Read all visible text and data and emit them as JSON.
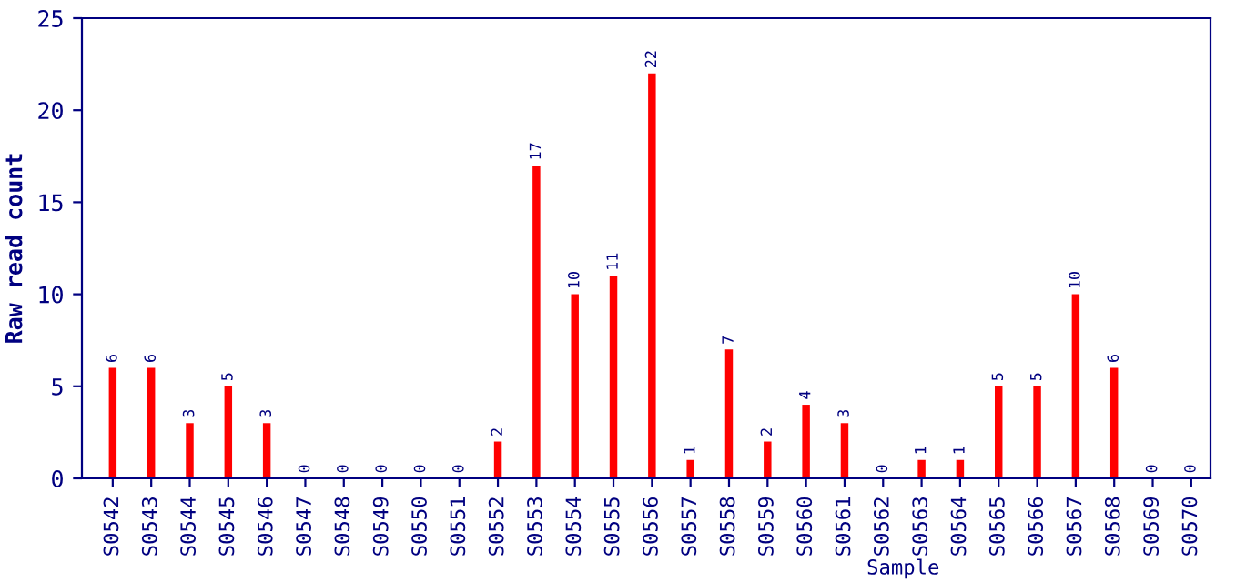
{
  "chart_data": {
    "type": "bar",
    "xlabel": "Sample",
    "ylabel": "Raw read count",
    "categories": [
      "S0542",
      "S0543",
      "S0544",
      "S0545",
      "S0546",
      "S0547",
      "S0548",
      "S0549",
      "S0550",
      "S0551",
      "S0552",
      "S0553",
      "S0554",
      "S0555",
      "S0556",
      "S0557",
      "S0558",
      "S0559",
      "S0560",
      "S0561",
      "S0562",
      "S0563",
      "S0564",
      "S0565",
      "S0566",
      "S0567",
      "S0568",
      "S0569",
      "S0570"
    ],
    "values": [
      6,
      6,
      3,
      5,
      3,
      0,
      0,
      0,
      0,
      0,
      2,
      17,
      10,
      11,
      22,
      1,
      7,
      2,
      4,
      3,
      0,
      1,
      1,
      5,
      5,
      10,
      6,
      0,
      0
    ],
    "color": "#ff0000",
    "ylim": [
      0,
      25
    ],
    "yticks": [
      0,
      5,
      10,
      15,
      20,
      25
    ],
    "data_labels": true,
    "grid": false,
    "legend": false
  }
}
